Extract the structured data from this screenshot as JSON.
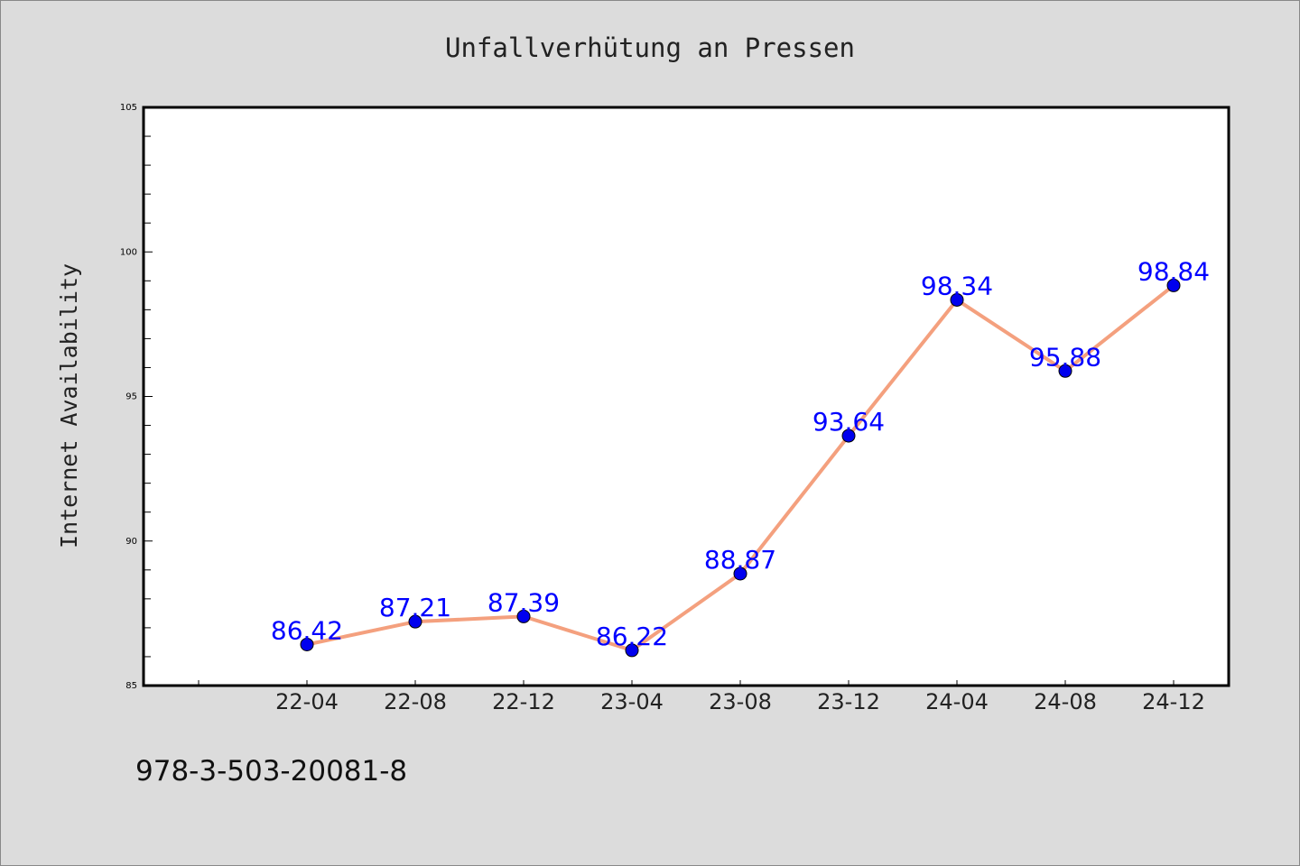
{
  "chart_data": {
    "type": "line",
    "title": "Unfallverhütung an Pressen",
    "xlabel": "",
    "ylabel": "Internet Availability",
    "categories": [
      "22-04",
      "22-08",
      "22-12",
      "23-04",
      "23-08",
      "23-12",
      "24-04",
      "24-08",
      "24-12"
    ],
    "values": [
      86.42,
      87.21,
      87.39,
      86.22,
      88.87,
      93.64,
      98.34,
      95.88,
      98.84
    ],
    "data_labels": [
      "86.42",
      "87.21",
      "87.39",
      "86.22",
      "88.87",
      "93.64",
      "98.34",
      "95.88",
      "98.84"
    ],
    "ylim": [
      85,
      105
    ],
    "y_ticks": [
      "85",
      "90",
      "95",
      "100",
      "105"
    ],
    "grid": false,
    "legend": "none",
    "colors": {
      "line": "#f4a07e",
      "marker": "#0000ee",
      "data_label": "#0000ff",
      "background": "#dcdcdc",
      "plot_background": "#ffffff"
    }
  },
  "footer": {
    "isbn": "978-3-503-20081-8"
  }
}
